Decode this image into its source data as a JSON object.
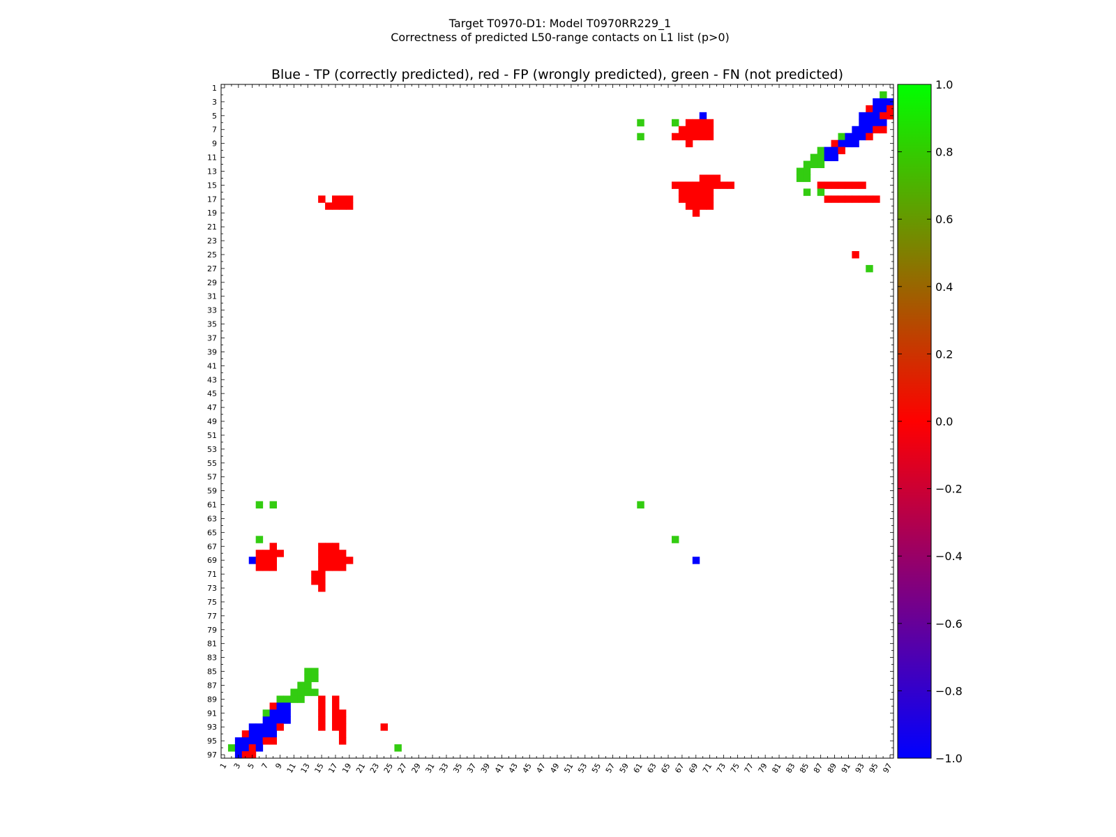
{
  "figure": {
    "suptitle_line1": "Target T0970-D1: Model T0970RR229_1",
    "suptitle_line2": "Correctness of predicted L50-range contacts on L1 list (p>0)"
  },
  "chart_data": {
    "type": "heatmap",
    "title": "Blue - TP (correctly predicted), red - FP (wrongly predicted), green - FN (not predicted)",
    "xlabel": "",
    "ylabel": "",
    "xlim": [
      1,
      97
    ],
    "ylim": [
      1,
      97
    ],
    "y_axis_inverted": true,
    "grid": false,
    "x_tick_labels": [
      "1",
      "3",
      "5",
      "7",
      "9",
      "11",
      "13",
      "15",
      "17",
      "19",
      "21",
      "23",
      "25",
      "27",
      "29",
      "31",
      "33",
      "35",
      "37",
      "39",
      "41",
      "43",
      "45",
      "47",
      "49",
      "51",
      "53",
      "55",
      "57",
      "59",
      "61",
      "63",
      "65",
      "67",
      "69",
      "71",
      "73",
      "75",
      "77",
      "79",
      "81",
      "83",
      "85",
      "87",
      "89",
      "91",
      "93",
      "95",
      "97"
    ],
    "y_tick_labels": [
      "1",
      "3",
      "5",
      "7",
      "9",
      "11",
      "13",
      "15",
      "17",
      "19",
      "21",
      "23",
      "25",
      "27",
      "29",
      "31",
      "33",
      "35",
      "37",
      "39",
      "41",
      "43",
      "45",
      "47",
      "49",
      "51",
      "53",
      "55",
      "57",
      "59",
      "61",
      "63",
      "65",
      "67",
      "69",
      "71",
      "73",
      "75",
      "77",
      "79",
      "81",
      "83",
      "85",
      "87",
      "89",
      "91",
      "93",
      "95",
      "97"
    ],
    "value_legend": {
      "TP": -1.0,
      "FP": 0.0,
      "FN": 0.85
    },
    "colors": {
      "TP": "#0000ff",
      "FP": "#ff0000",
      "FN": "#33cc11"
    },
    "colorbar": {
      "ticks": [
        "1.0",
        "0.8",
        "0.6",
        "0.4",
        "0.2",
        "0.0",
        "−0.2",
        "−0.4",
        "−0.6",
        "−0.8",
        "−1.0"
      ],
      "range": [
        -1.0,
        1.0
      ],
      "stops": [
        "#0000ff",
        "#ff0000",
        "#00ff00"
      ]
    },
    "cells": [
      [
        96,
        2,
        "FN"
      ],
      [
        95,
        3,
        "TP"
      ],
      [
        96,
        3,
        "TP"
      ],
      [
        97,
        3,
        "TP"
      ],
      [
        94,
        4,
        "FP"
      ],
      [
        95,
        4,
        "TP"
      ],
      [
        96,
        4,
        "TP"
      ],
      [
        97,
        4,
        "FP"
      ],
      [
        93,
        5,
        "TP"
      ],
      [
        94,
        5,
        "TP"
      ],
      [
        95,
        5,
        "TP"
      ],
      [
        96,
        5,
        "FP"
      ],
      [
        97,
        5,
        "FP"
      ],
      [
        93,
        6,
        "TP"
      ],
      [
        94,
        6,
        "TP"
      ],
      [
        95,
        6,
        "TP"
      ],
      [
        96,
        6,
        "TP"
      ],
      [
        92,
        7,
        "TP"
      ],
      [
        93,
        7,
        "TP"
      ],
      [
        94,
        7,
        "TP"
      ],
      [
        95,
        7,
        "FP"
      ],
      [
        96,
        7,
        "FP"
      ],
      [
        90,
        8,
        "FN"
      ],
      [
        91,
        8,
        "TP"
      ],
      [
        92,
        8,
        "TP"
      ],
      [
        93,
        8,
        "TP"
      ],
      [
        94,
        8,
        "FP"
      ],
      [
        89,
        9,
        "FP"
      ],
      [
        90,
        9,
        "TP"
      ],
      [
        91,
        9,
        "TP"
      ],
      [
        92,
        9,
        "TP"
      ],
      [
        87,
        10,
        "FN"
      ],
      [
        88,
        10,
        "TP"
      ],
      [
        89,
        10,
        "TP"
      ],
      [
        90,
        10,
        "FP"
      ],
      [
        86,
        11,
        "FN"
      ],
      [
        87,
        11,
        "FN"
      ],
      [
        88,
        11,
        "TP"
      ],
      [
        89,
        11,
        "TP"
      ],
      [
        85,
        12,
        "FN"
      ],
      [
        86,
        12,
        "FN"
      ],
      [
        87,
        12,
        "FN"
      ],
      [
        84,
        13,
        "FN"
      ],
      [
        85,
        13,
        "FN"
      ],
      [
        84,
        14,
        "FN"
      ],
      [
        85,
        14,
        "FN"
      ],
      [
        87,
        15,
        "FP"
      ],
      [
        88,
        15,
        "FP"
      ],
      [
        89,
        15,
        "FP"
      ],
      [
        90,
        15,
        "FP"
      ],
      [
        91,
        15,
        "FP"
      ],
      [
        92,
        15,
        "FP"
      ],
      [
        93,
        15,
        "FP"
      ],
      [
        85,
        16,
        "FN"
      ],
      [
        87,
        16,
        "FN"
      ],
      [
        15,
        17,
        "FP"
      ],
      [
        17,
        17,
        "FP"
      ],
      [
        18,
        17,
        "FP"
      ],
      [
        19,
        17,
        "FP"
      ],
      [
        88,
        17,
        "FP"
      ],
      [
        89,
        17,
        "FP"
      ],
      [
        90,
        17,
        "FP"
      ],
      [
        91,
        17,
        "FP"
      ],
      [
        92,
        17,
        "FP"
      ],
      [
        93,
        17,
        "FP"
      ],
      [
        94,
        17,
        "FP"
      ],
      [
        95,
        17,
        "FP"
      ],
      [
        16,
        18,
        "FP"
      ],
      [
        17,
        18,
        "FP"
      ],
      [
        18,
        18,
        "FP"
      ],
      [
        19,
        18,
        "FP"
      ],
      [
        92,
        25,
        "FP"
      ],
      [
        94,
        27,
        "FN"
      ],
      [
        61,
        61,
        "FN"
      ],
      [
        66,
        66,
        "FN"
      ],
      [
        69,
        69,
        "TP"
      ],
      [
        70,
        5,
        "TP"
      ],
      [
        68,
        6,
        "FP"
      ],
      [
        69,
        6,
        "FP"
      ],
      [
        70,
        6,
        "FP"
      ],
      [
        71,
        6,
        "FP"
      ],
      [
        61,
        6,
        "FN"
      ],
      [
        66,
        6,
        "FN"
      ],
      [
        67,
        7,
        "FP"
      ],
      [
        68,
        7,
        "FP"
      ],
      [
        69,
        7,
        "FP"
      ],
      [
        70,
        7,
        "FP"
      ],
      [
        71,
        7,
        "FP"
      ],
      [
        61,
        8,
        "FN"
      ],
      [
        66,
        8,
        "FP"
      ],
      [
        67,
        8,
        "FP"
      ],
      [
        68,
        8,
        "FP"
      ],
      [
        69,
        8,
        "FP"
      ],
      [
        70,
        8,
        "FP"
      ],
      [
        71,
        8,
        "FP"
      ],
      [
        68,
        9,
        "FP"
      ],
      [
        70,
        14,
        "FP"
      ],
      [
        71,
        14,
        "FP"
      ],
      [
        72,
        14,
        "FP"
      ],
      [
        66,
        15,
        "FP"
      ],
      [
        67,
        15,
        "FP"
      ],
      [
        68,
        15,
        "FP"
      ],
      [
        69,
        15,
        "FP"
      ],
      [
        70,
        15,
        "FP"
      ],
      [
        71,
        15,
        "FP"
      ],
      [
        72,
        15,
        "FP"
      ],
      [
        73,
        15,
        "FP"
      ],
      [
        74,
        15,
        "FP"
      ],
      [
        67,
        16,
        "FP"
      ],
      [
        68,
        16,
        "FP"
      ],
      [
        69,
        16,
        "FP"
      ],
      [
        70,
        16,
        "FP"
      ],
      [
        71,
        16,
        "FP"
      ],
      [
        67,
        17,
        "FP"
      ],
      [
        68,
        17,
        "FP"
      ],
      [
        69,
        17,
        "FP"
      ],
      [
        70,
        17,
        "FP"
      ],
      [
        71,
        17,
        "FP"
      ],
      [
        68,
        18,
        "FP"
      ],
      [
        69,
        18,
        "FP"
      ],
      [
        70,
        18,
        "FP"
      ],
      [
        71,
        18,
        "FP"
      ],
      [
        69,
        19,
        "FP"
      ],
      [
        6,
        61,
        "FN"
      ],
      [
        8,
        61,
        "FN"
      ],
      [
        6,
        66,
        "FN"
      ],
      [
        8,
        67,
        "FP"
      ],
      [
        8,
        68,
        "FP"
      ],
      [
        9,
        68,
        "FP"
      ],
      [
        6,
        68,
        "FP"
      ],
      [
        7,
        68,
        "FP"
      ],
      [
        5,
        69,
        "TP"
      ],
      [
        6,
        69,
        "FP"
      ],
      [
        7,
        69,
        "FP"
      ],
      [
        8,
        69,
        "FP"
      ],
      [
        6,
        70,
        "FP"
      ],
      [
        7,
        70,
        "FP"
      ],
      [
        8,
        70,
        "FP"
      ],
      [
        15,
        67,
        "FP"
      ],
      [
        16,
        67,
        "FP"
      ],
      [
        17,
        67,
        "FP"
      ],
      [
        15,
        68,
        "FP"
      ],
      [
        16,
        68,
        "FP"
      ],
      [
        17,
        68,
        "FP"
      ],
      [
        18,
        68,
        "FP"
      ],
      [
        15,
        69,
        "FP"
      ],
      [
        16,
        69,
        "FP"
      ],
      [
        17,
        69,
        "FP"
      ],
      [
        18,
        69,
        "FP"
      ],
      [
        19,
        69,
        "FP"
      ],
      [
        15,
        70,
        "FP"
      ],
      [
        16,
        70,
        "FP"
      ],
      [
        17,
        70,
        "FP"
      ],
      [
        18,
        70,
        "FP"
      ],
      [
        14,
        71,
        "FP"
      ],
      [
        15,
        71,
        "FP"
      ],
      [
        14,
        72,
        "FP"
      ],
      [
        15,
        72,
        "FP"
      ],
      [
        15,
        73,
        "FP"
      ],
      [
        13,
        85,
        "FN"
      ],
      [
        14,
        85,
        "FN"
      ],
      [
        13,
        86,
        "FN"
      ],
      [
        14,
        86,
        "FN"
      ],
      [
        12,
        87,
        "FN"
      ],
      [
        13,
        87,
        "FN"
      ],
      [
        11,
        88,
        "FN"
      ],
      [
        12,
        88,
        "FN"
      ],
      [
        13,
        88,
        "FN"
      ],
      [
        14,
        88,
        "FN"
      ],
      [
        9,
        89,
        "FN"
      ],
      [
        10,
        89,
        "FN"
      ],
      [
        11,
        89,
        "FN"
      ],
      [
        12,
        89,
        "FN"
      ],
      [
        8,
        90,
        "FP"
      ],
      [
        9,
        90,
        "TP"
      ],
      [
        10,
        90,
        "TP"
      ],
      [
        7,
        91,
        "FN"
      ],
      [
        8,
        91,
        "TP"
      ],
      [
        9,
        91,
        "TP"
      ],
      [
        10,
        91,
        "TP"
      ],
      [
        7,
        92,
        "TP"
      ],
      [
        8,
        92,
        "TP"
      ],
      [
        9,
        92,
        "TP"
      ],
      [
        10,
        92,
        "TP"
      ],
      [
        5,
        93,
        "TP"
      ],
      [
        6,
        93,
        "TP"
      ],
      [
        7,
        93,
        "TP"
      ],
      [
        8,
        93,
        "TP"
      ],
      [
        9,
        93,
        "FP"
      ],
      [
        4,
        94,
        "FP"
      ],
      [
        5,
        94,
        "TP"
      ],
      [
        6,
        94,
        "TP"
      ],
      [
        7,
        94,
        "TP"
      ],
      [
        8,
        94,
        "TP"
      ],
      [
        3,
        95,
        "TP"
      ],
      [
        4,
        95,
        "TP"
      ],
      [
        5,
        95,
        "TP"
      ],
      [
        6,
        95,
        "TP"
      ],
      [
        7,
        95,
        "FP"
      ],
      [
        8,
        95,
        "FP"
      ],
      [
        2,
        96,
        "FN"
      ],
      [
        3,
        96,
        "TP"
      ],
      [
        4,
        96,
        "TP"
      ],
      [
        5,
        96,
        "FP"
      ],
      [
        6,
        96,
        "TP"
      ],
      [
        3,
        97,
        "TP"
      ],
      [
        4,
        97,
        "FP"
      ],
      [
        5,
        97,
        "FP"
      ],
      [
        15,
        89,
        "FP"
      ],
      [
        15,
        90,
        "FP"
      ],
      [
        15,
        91,
        "FP"
      ],
      [
        15,
        92,
        "FP"
      ],
      [
        15,
        93,
        "FP"
      ],
      [
        17,
        89,
        "FP"
      ],
      [
        17,
        90,
        "FP"
      ],
      [
        17,
        91,
        "FP"
      ],
      [
        17,
        92,
        "FP"
      ],
      [
        17,
        93,
        "FP"
      ],
      [
        18,
        91,
        "FP"
      ],
      [
        18,
        92,
        "FP"
      ],
      [
        18,
        93,
        "FP"
      ],
      [
        18,
        94,
        "FP"
      ],
      [
        18,
        95,
        "FP"
      ],
      [
        24,
        93,
        "FP"
      ],
      [
        26,
        96,
        "FN"
      ]
    ]
  }
}
